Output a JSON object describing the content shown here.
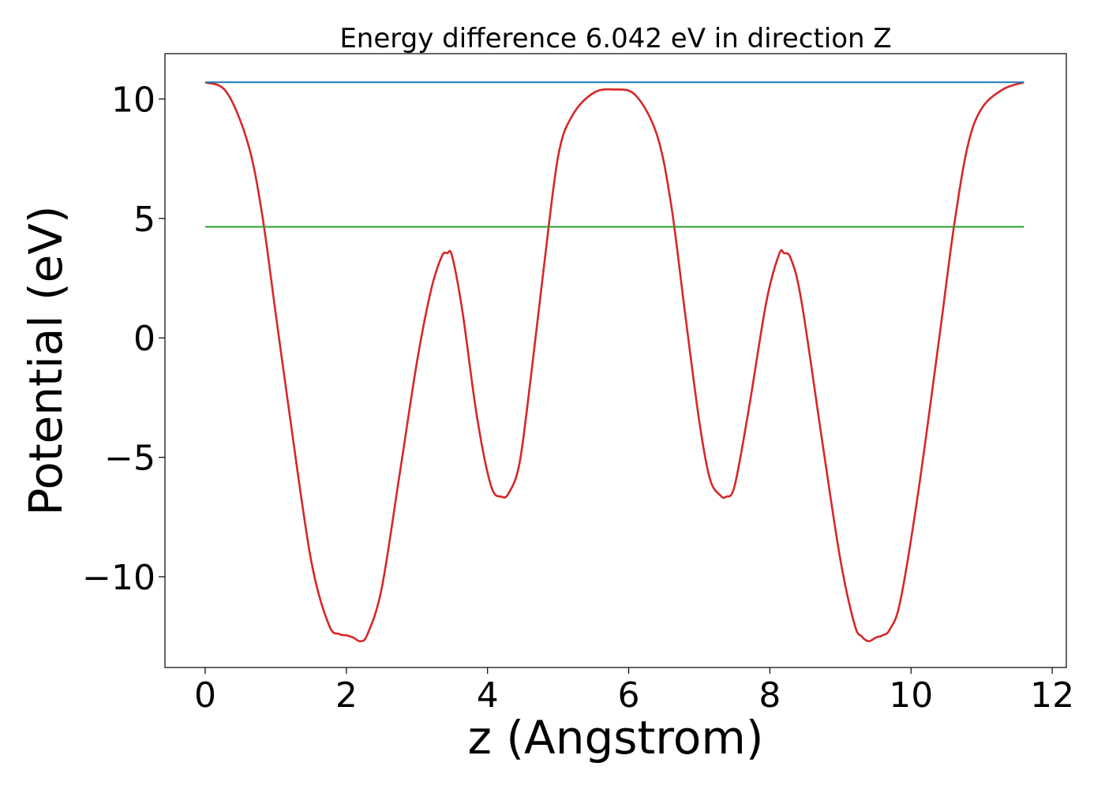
{
  "chart_data": {
    "type": "line",
    "title": "Energy difference 6.042 eV in direction Z",
    "xlabel": "z (Angstrom)",
    "ylabel": "Potential (eV)",
    "xlim": [
      -0.57,
      12.2
    ],
    "ylim": [
      -13.8,
      11.9
    ],
    "x_ticks": [
      0,
      2,
      4,
      6,
      8,
      10,
      12
    ],
    "x_tick_labels": [
      "0",
      "2",
      "4",
      "6",
      "8",
      "10",
      "12"
    ],
    "y_ticks": [
      10,
      5,
      0,
      -5,
      -10
    ],
    "y_tick_labels": [
      "10",
      "5",
      "0",
      "−5",
      "−10"
    ],
    "grid": false,
    "legend": false,
    "series": [
      {
        "color": "#d62728",
        "x": [
          0,
          0.3,
          0.6,
          0.8,
          1.0,
          1.2,
          1.5,
          1.75,
          1.9,
          2.0,
          2.1,
          2.2,
          2.3,
          2.5,
          2.75,
          3.0,
          3.2,
          3.35,
          3.43,
          3.5,
          3.65,
          3.85,
          4.05,
          4.2,
          4.3,
          4.45,
          4.6,
          4.8,
          5.0,
          5.2,
          5.5,
          5.8,
          6.1,
          6.4,
          6.6,
          6.8,
          7.0,
          7.15,
          7.3,
          7.38,
          7.5,
          7.7,
          7.95,
          8.13,
          8.2,
          8.3,
          8.45,
          8.75,
          9.0,
          9.2,
          9.3,
          9.4,
          9.5,
          9.6,
          9.7,
          9.85,
          10.1,
          10.4,
          10.6,
          10.8,
          11.0,
          11.3,
          11.6
        ],
        "y": [
          10.7,
          10.3,
          8.2,
          5.3,
          1.0,
          -3.3,
          -9.3,
          -12.0,
          -12.4,
          -12.45,
          -12.55,
          -12.7,
          -12.4,
          -10.5,
          -5.8,
          -1.0,
          2.0,
          3.4,
          3.55,
          3.4,
          1.0,
          -3.3,
          -6.2,
          -6.65,
          -6.5,
          -5.3,
          -2.0,
          3.0,
          7.6,
          9.3,
          10.25,
          10.4,
          10.15,
          8.5,
          5.6,
          1.0,
          -3.5,
          -5.9,
          -6.6,
          -6.65,
          -6.2,
          -3.0,
          1.5,
          3.5,
          3.55,
          3.3,
          1.5,
          -4.5,
          -9.3,
          -12.0,
          -12.5,
          -12.7,
          -12.55,
          -12.45,
          -12.2,
          -11.0,
          -6.5,
          0.0,
          4.5,
          8.0,
          9.6,
          10.4,
          10.7
        ]
      },
      {
        "color": "#1f77b4",
        "x": [
          0,
          11.6
        ],
        "y": [
          10.7,
          10.7
        ]
      },
      {
        "color": "#2ca02c",
        "x": [
          0,
          11.6
        ],
        "y": [
          4.65,
          4.65
        ]
      }
    ]
  }
}
